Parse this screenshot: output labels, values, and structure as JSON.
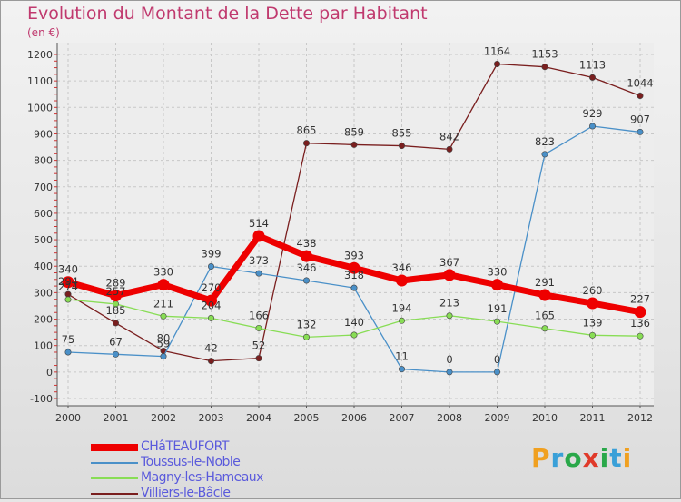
{
  "title": "Evolution du Montant de la Dette par Habitant",
  "subtitle": "(en €)",
  "logo": {
    "text": "Proxiti",
    "colors": [
      "#f0a020",
      "#3aa0d8",
      "#2aa84a",
      "#e03a2a",
      "#2aa84a",
      "#3aa0d8",
      "#f0a020"
    ]
  },
  "chart_data": {
    "type": "line",
    "x": [
      "2000",
      "2001",
      "2002",
      "2003",
      "2004",
      "2005",
      "2006",
      "2007",
      "2008",
      "2009",
      "2010",
      "2011",
      "2012"
    ],
    "ylim": [
      -100,
      1200
    ],
    "yticks": [
      -100,
      0,
      100,
      200,
      300,
      400,
      500,
      600,
      700,
      800,
      900,
      1000,
      1100,
      1200
    ],
    "grid": true,
    "legend_position": "bottom-left",
    "series": [
      {
        "name": "CHâTEAUFORT",
        "color": "#ee0000",
        "bold": true,
        "values": [
          340,
          289,
          330,
          270,
          514,
          438,
          393,
          346,
          367,
          330,
          291,
          260,
          227
        ]
      },
      {
        "name": "Toussus-le-Noble",
        "color": "#4a90c8",
        "values": [
          75,
          67,
          59,
          399,
          373,
          346,
          318,
          11,
          0,
          0,
          823,
          929,
          907
        ]
      },
      {
        "name": "Magny-les-Hameaux",
        "color": "#88dd55",
        "values": [
          274,
          257,
          211,
          204,
          166,
          132,
          140,
          194,
          213,
          191,
          165,
          139,
          136
        ]
      },
      {
        "name": "Villiers-le-Bâcle",
        "color": "#7a1f1f",
        "values": [
          294,
          185,
          80,
          42,
          52,
          865,
          859,
          855,
          842,
          1164,
          1153,
          1113,
          1044
        ]
      }
    ],
    "value_labels": [
      {
        "x": "2000",
        "text": "340"
      },
      {
        "x": "2001",
        "text": "289"
      },
      {
        "x": "2002",
        "text": "330"
      },
      {
        "x": "2003",
        "text": "270"
      },
      {
        "x": "2004",
        "text": "514"
      },
      {
        "x": "2005",
        "text": "438"
      },
      {
        "x": "2006",
        "text": "393"
      },
      {
        "x": "2007",
        "text": "346"
      },
      {
        "x": "2008",
        "text": "367"
      },
      {
        "x": "2009",
        "text": "330"
      },
      {
        "x": "2010",
        "text": "291"
      },
      {
        "x": "2011",
        "text": "260"
      },
      {
        "x": "2012",
        "text": "227"
      },
      {
        "x": "2000",
        "text": "75"
      },
      {
        "x": "2001",
        "text": "67"
      },
      {
        "x": "2002",
        "text": "59"
      },
      {
        "x": "2003",
        "text": "399"
      },
      {
        "x": "2004",
        "text": "373"
      },
      {
        "x": "2005",
        "text": "346"
      },
      {
        "x": "2006",
        "text": "318"
      },
      {
        "x": "2007",
        "text": "11"
      },
      {
        "x": "2008",
        "text": "0"
      },
      {
        "x": "2009",
        "text": "0"
      },
      {
        "x": "2010",
        "text": "823"
      },
      {
        "x": "2011",
        "text": "929"
      },
      {
        "x": "2012",
        "text": "907"
      },
      {
        "x": "2000",
        "text": "274"
      },
      {
        "x": "2001",
        "text": "257"
      },
      {
        "x": "2002",
        "text": "211"
      },
      {
        "x": "2003",
        "text": "204"
      },
      {
        "x": "2004",
        "text": "166"
      },
      {
        "x": "2005",
        "text": "132"
      },
      {
        "x": "2006",
        "text": "140"
      },
      {
        "x": "2007",
        "text": "194"
      },
      {
        "x": "2008",
        "text": "213"
      },
      {
        "x": "2009",
        "text": "191"
      },
      {
        "x": "2010",
        "text": "165"
      },
      {
        "x": "2011",
        "text": "139"
      },
      {
        "x": "2012",
        "text": "136"
      },
      {
        "x": "2000",
        "text": "294"
      },
      {
        "x": "2001",
        "text": "185"
      },
      {
        "x": "2002",
        "text": "80"
      },
      {
        "x": "2003",
        "text": "42"
      },
      {
        "x": "2004",
        "text": "52"
      },
      {
        "x": "2005",
        "text": "865"
      },
      {
        "x": "2006",
        "text": "859"
      },
      {
        "x": "2007",
        "text": "855"
      },
      {
        "x": "2008",
        "text": "842"
      },
      {
        "x": "2009",
        "text": "1164"
      },
      {
        "x": "2010",
        "text": "1153"
      },
      {
        "x": "2011",
        "text": "1113"
      },
      {
        "x": "2012",
        "text": "1044"
      }
    ]
  }
}
